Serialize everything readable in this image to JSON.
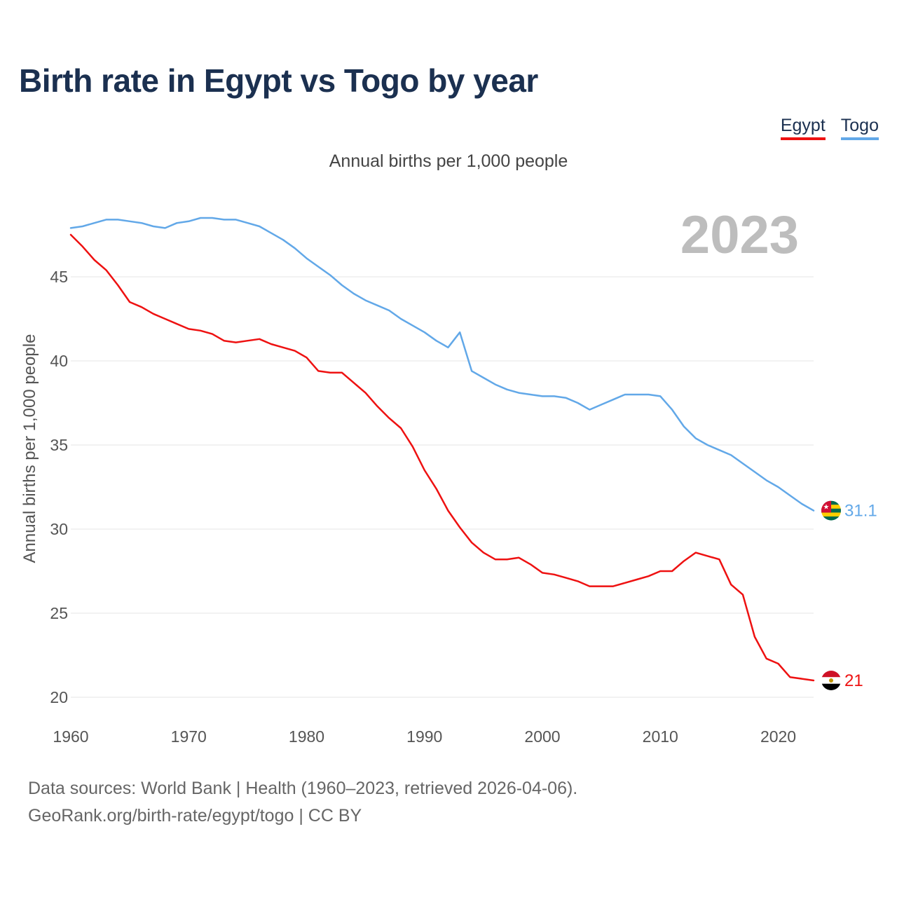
{
  "chart_data": {
    "type": "line",
    "title": "Birth rate in Egypt vs Togo by year",
    "subtitle": "Annual births per 1,000 people",
    "ylabel": "Annual births per 1,000 people",
    "xlabel": "",
    "current_year": "2023",
    "xlim": [
      1960,
      2023
    ],
    "ylim": [
      20,
      50
    ],
    "x_ticks": [
      "1960",
      "1970",
      "1980",
      "1990",
      "2000",
      "2010",
      "2020"
    ],
    "y_ticks": [
      "20",
      "25",
      "30",
      "35",
      "40",
      "45"
    ],
    "x": [
      1960,
      1961,
      1962,
      1963,
      1964,
      1965,
      1966,
      1967,
      1968,
      1969,
      1970,
      1971,
      1972,
      1973,
      1974,
      1975,
      1976,
      1977,
      1978,
      1979,
      1980,
      1981,
      1982,
      1983,
      1984,
      1985,
      1986,
      1987,
      1988,
      1989,
      1990,
      1991,
      1992,
      1993,
      1994,
      1995,
      1996,
      1997,
      1998,
      1999,
      2000,
      2001,
      2002,
      2003,
      2004,
      2005,
      2006,
      2007,
      2008,
      2009,
      2010,
      2011,
      2012,
      2013,
      2014,
      2015,
      2016,
      2017,
      2018,
      2019,
      2020,
      2021,
      2022,
      2023
    ],
    "series": [
      {
        "name": "Egypt",
        "color": "#ee1111",
        "end_label": "21",
        "values": [
          47.5,
          46.8,
          46.0,
          45.4,
          44.5,
          43.5,
          43.2,
          42.8,
          42.5,
          42.2,
          41.9,
          41.8,
          41.6,
          41.2,
          41.1,
          41.2,
          41.3,
          41.0,
          40.8,
          40.6,
          40.2,
          39.4,
          39.3,
          39.3,
          38.7,
          38.1,
          37.3,
          36.6,
          36.0,
          34.9,
          33.5,
          32.4,
          31.1,
          30.1,
          29.2,
          28.6,
          28.2,
          28.2,
          28.3,
          27.9,
          27.4,
          27.3,
          27.1,
          26.9,
          26.6,
          26.6,
          26.6,
          26.8,
          27.0,
          27.2,
          27.5,
          27.5,
          28.1,
          28.6,
          28.4,
          28.2,
          26.7,
          26.1,
          23.6,
          22.3,
          22.0,
          21.2,
          21.1,
          21.0
        ]
      },
      {
        "name": "Togo",
        "color": "#62a8e8",
        "end_label": "31.1",
        "values": [
          47.9,
          48.0,
          48.2,
          48.4,
          48.4,
          48.3,
          48.2,
          48.0,
          47.9,
          48.2,
          48.3,
          48.5,
          48.5,
          48.4,
          48.4,
          48.2,
          48.0,
          47.6,
          47.2,
          46.7,
          46.1,
          45.6,
          45.1,
          44.5,
          44.0,
          43.6,
          43.3,
          43.0,
          42.5,
          42.1,
          41.7,
          41.2,
          40.8,
          41.7,
          39.4,
          39.0,
          38.6,
          38.3,
          38.1,
          38.0,
          37.9,
          37.9,
          37.8,
          37.5,
          37.1,
          37.4,
          37.7,
          38.0,
          38.0,
          38.0,
          37.9,
          37.1,
          36.1,
          35.4,
          35.0,
          34.7,
          34.4,
          33.9,
          33.4,
          32.9,
          32.5,
          32.0,
          31.5,
          31.1
        ]
      }
    ]
  },
  "source": {
    "line1": "Data sources: World Bank | Health (1960–2023, retrieved 2026-04-06).",
    "line2": "GeoRank.org/birth-rate/egypt/togo | CC BY"
  }
}
